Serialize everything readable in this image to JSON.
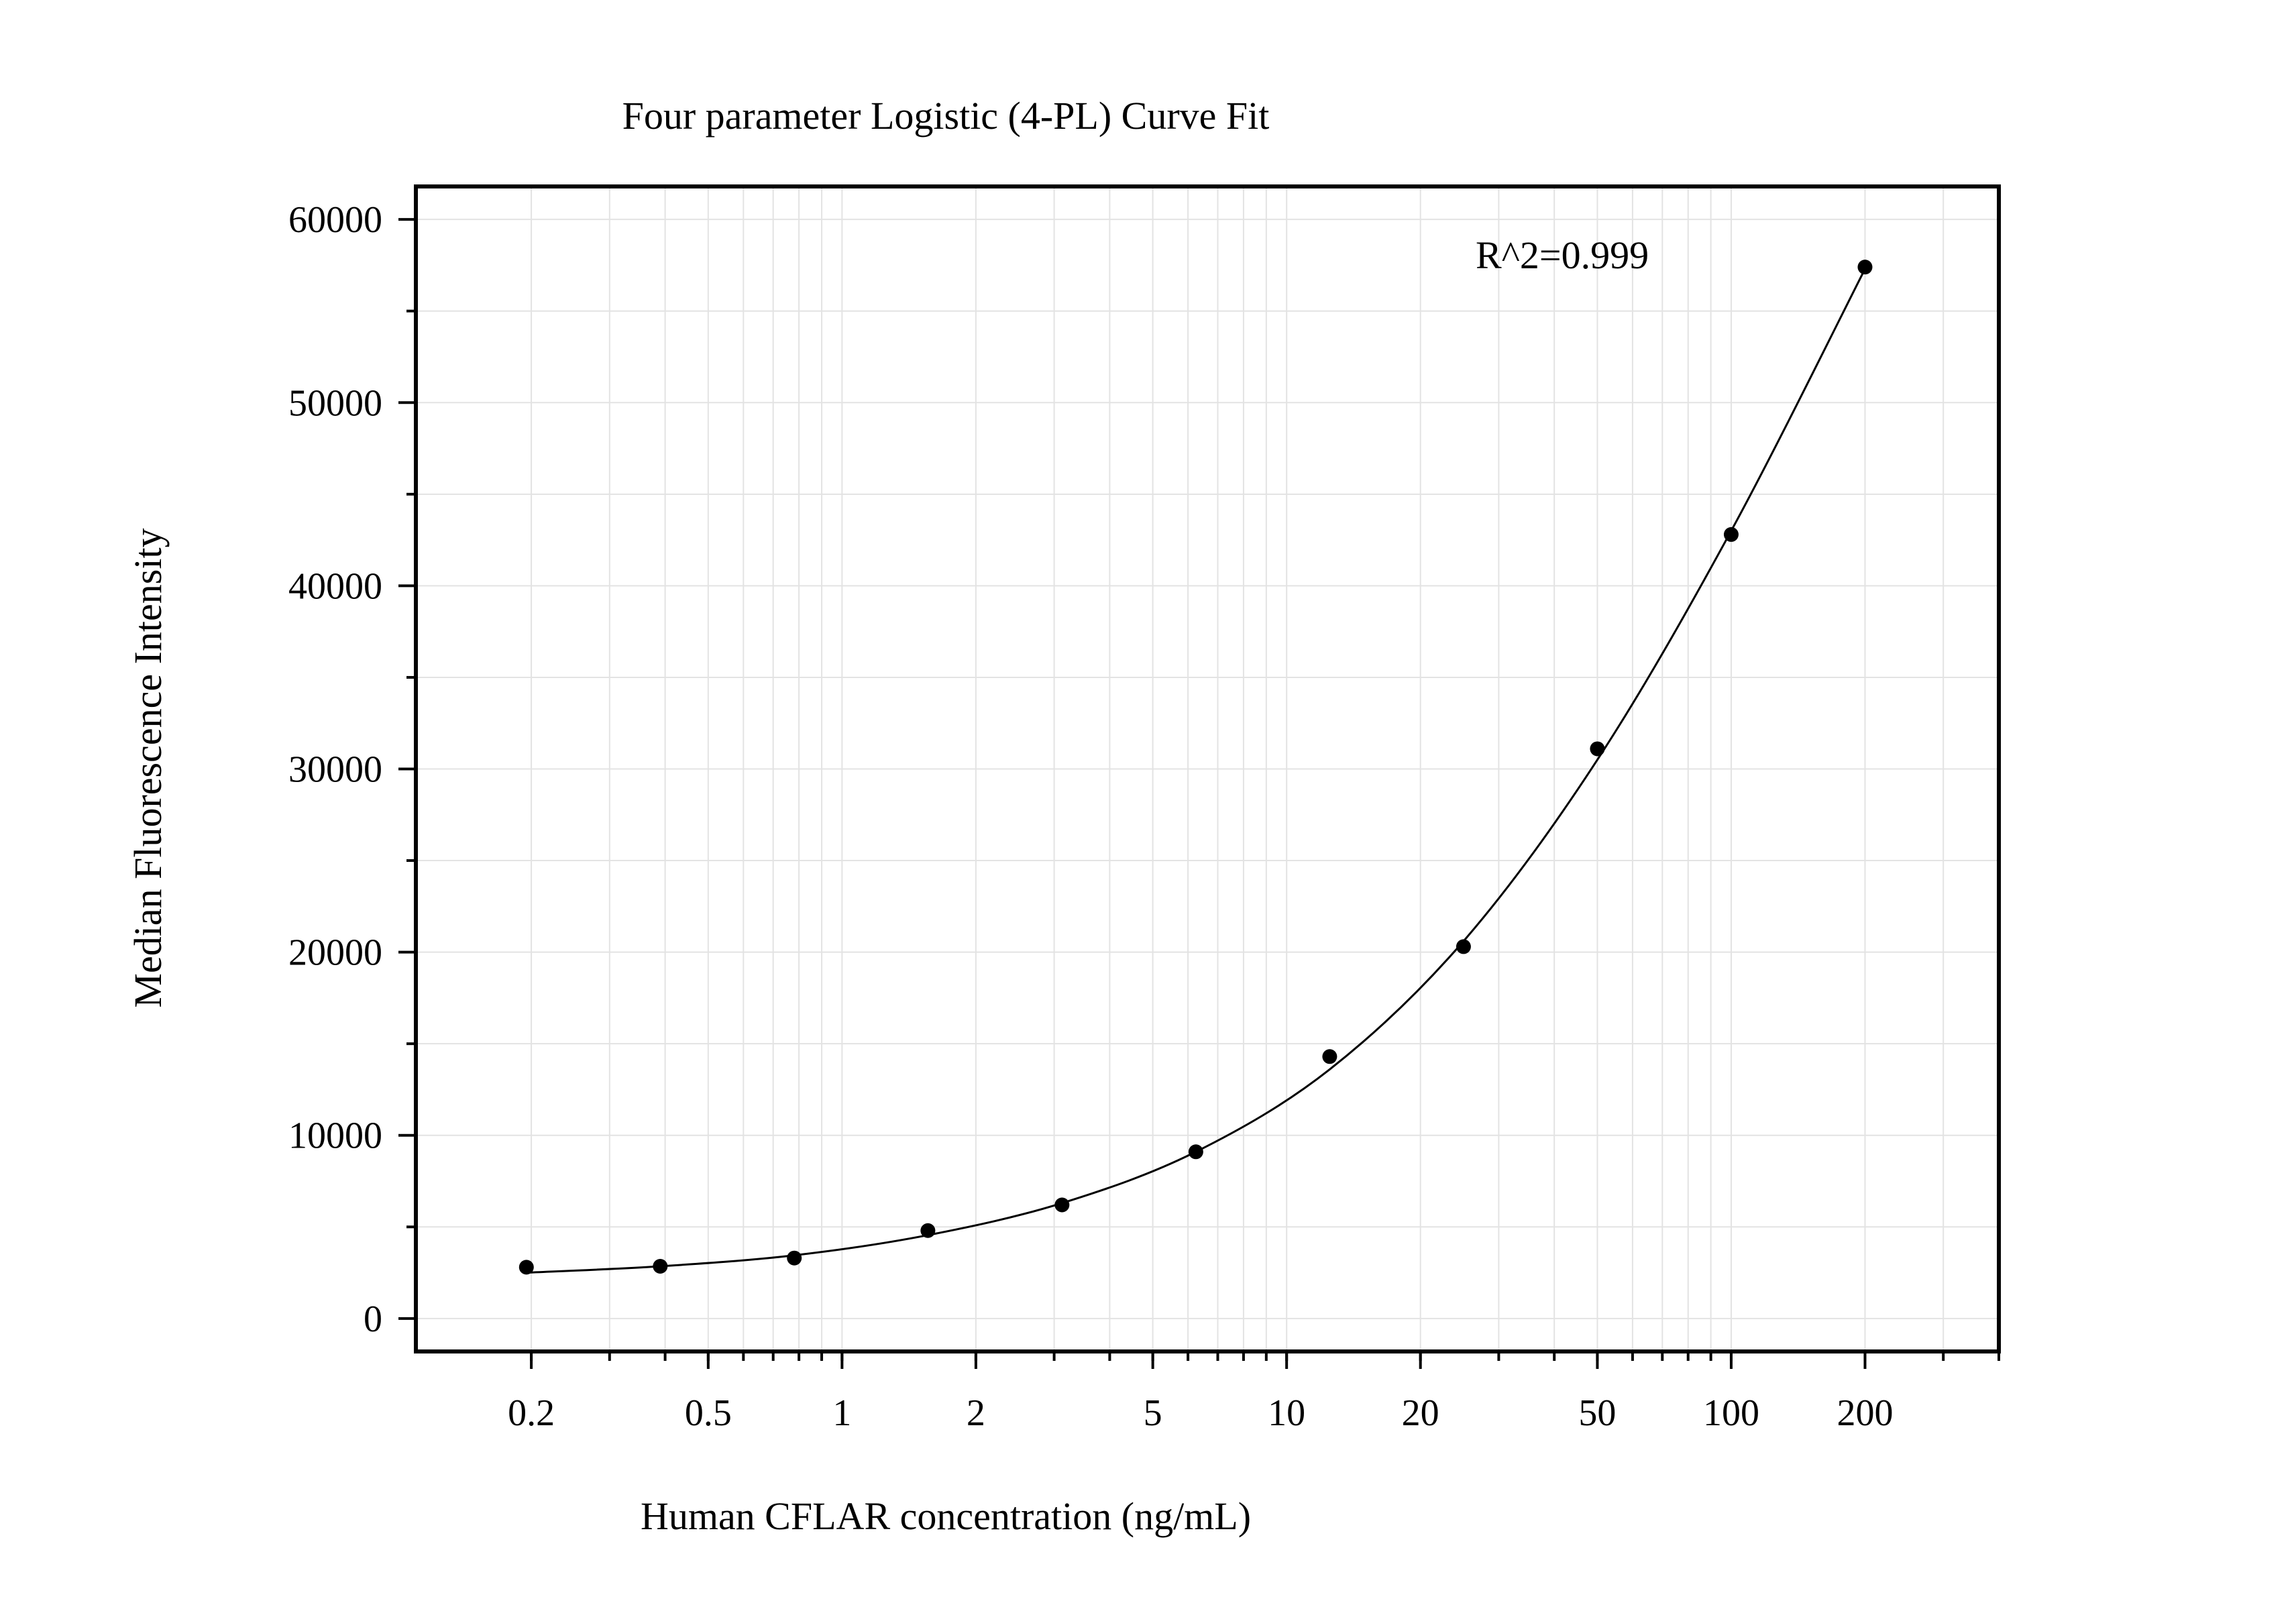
{
  "chart_data": {
    "type": "scatter",
    "title": "Four parameter Logistic (4-PL) Curve Fit",
    "xlabel": "Human CFLAR concentration (ng/mL)",
    "ylabel": "Median Fluorescence Intensity",
    "x_scale": "log",
    "xlim": [
      0.11,
      400
    ],
    "ylim": [
      -1800,
      61800
    ],
    "x_ticks": [
      0.2,
      0.5,
      1,
      2,
      5,
      10,
      20,
      50,
      100,
      200
    ],
    "x_tick_labels": [
      "0.2",
      "0.5",
      "1",
      "2",
      "5",
      "10",
      "20",
      "50",
      "100",
      "200"
    ],
    "y_ticks": [
      0,
      10000,
      20000,
      30000,
      40000,
      50000,
      60000
    ],
    "y_tick_labels": [
      "0",
      "10000",
      "20000",
      "30000",
      "40000",
      "50000",
      "60000"
    ],
    "grid": true,
    "annotation": "R^2=0.999",
    "points": [
      {
        "x": 0.195,
        "y": 2800
      },
      {
        "x": 0.39,
        "y": 2850
      },
      {
        "x": 0.781,
        "y": 3300
      },
      {
        "x": 1.56,
        "y": 4800
      },
      {
        "x": 3.125,
        "y": 6200
      },
      {
        "x": 6.25,
        "y": 9100
      },
      {
        "x": 12.5,
        "y": 14300
      },
      {
        "x": 25,
        "y": 20300
      },
      {
        "x": 50,
        "y": 31100
      },
      {
        "x": 100,
        "y": 42800
      },
      {
        "x": 200,
        "y": 57400
      }
    ],
    "fit_curve": [
      {
        "x": 0.195,
        "y": 2500
      },
      {
        "x": 0.39,
        "y": 2850
      },
      {
        "x": 0.781,
        "y": 3450
      },
      {
        "x": 1.56,
        "y": 4550
      },
      {
        "x": 3.125,
        "y": 6300
      },
      {
        "x": 6.25,
        "y": 9100
      },
      {
        "x": 12.5,
        "y": 13600
      },
      {
        "x": 25,
        "y": 20600
      },
      {
        "x": 50,
        "y": 30500
      },
      {
        "x": 100,
        "y": 43000
      },
      {
        "x": 200,
        "y": 57300
      }
    ],
    "colors": {
      "points": "#000000",
      "curve": "#000000",
      "grid": "#e3e3e3",
      "frame": "#000000"
    }
  }
}
